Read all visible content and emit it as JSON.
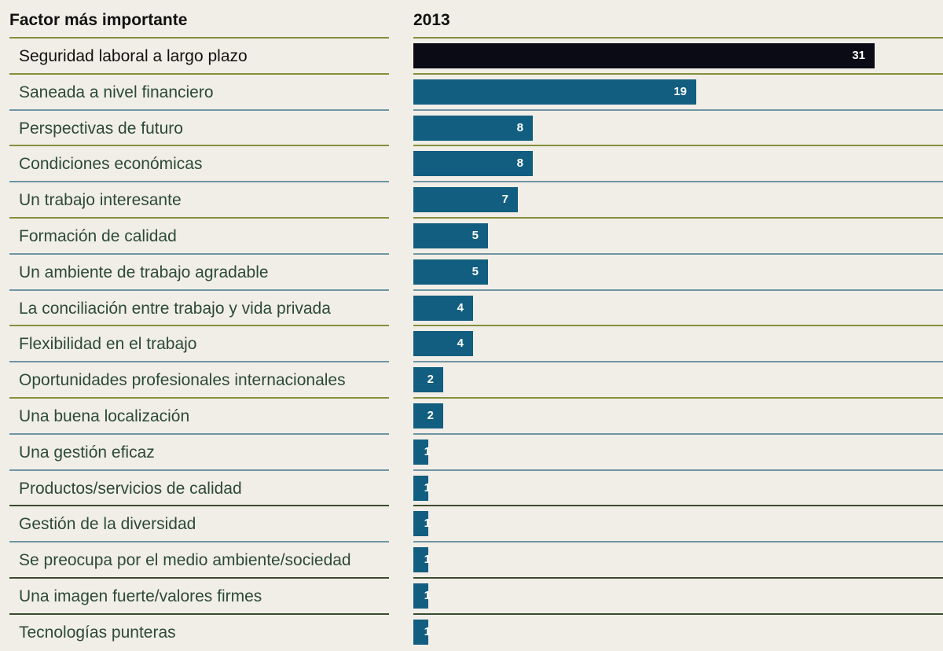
{
  "chart_data": {
    "type": "bar",
    "orientation": "horizontal",
    "column_header": "Factor más importante",
    "series_header": "2013",
    "categories": [
      "Seguridad laboral a largo plazo",
      "Saneada a nivel financiero",
      "Perspectivas de futuro",
      "Condiciones  económicas",
      "Un trabajo interesante",
      "Formación de calidad",
      "Un ambiente de trabajo agradable",
      "La conciliación  entre trabajo y vida privada",
      "Flexibilidad  en el trabajo",
      "Oportunidades profesionales internacionales",
      "Una buena localización",
      "Una gestión eficaz",
      "Productos/servicios de calidad",
      "Gestión de la diversidad",
      "Se preocupa por el medio ambiente/sociedad",
      "Una imagen fuerte/valores firmes",
      "Tecnologías punteras"
    ],
    "values": [
      31,
      19,
      8,
      8,
      7,
      5,
      5,
      4,
      4,
      2,
      2,
      1,
      1,
      1,
      1,
      1,
      1
    ],
    "colors": {
      "highlight": "#0b0b16",
      "bar": "#125e80",
      "background": "#f1eee7",
      "separator_olive": "#848f3c",
      "separator_blue": "#6f95a4"
    },
    "grid": false,
    "legend": "none"
  }
}
